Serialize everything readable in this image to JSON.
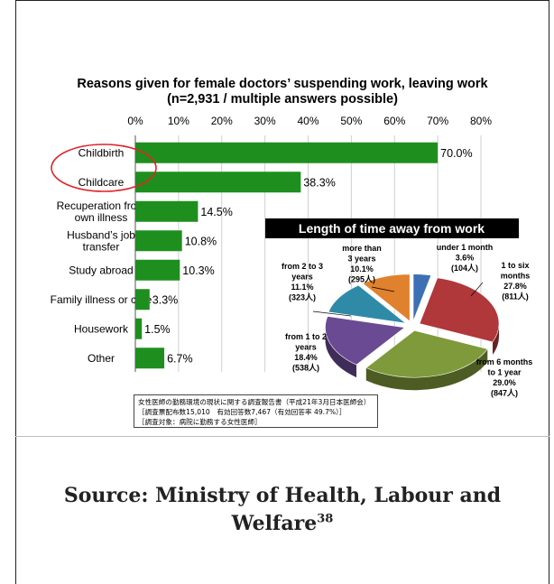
{
  "chart_data": [
    {
      "type": "bar",
      "orientation": "horizontal",
      "title": "Reasons given for female doctors’ suspending work, leaving work",
      "subtitle": "(n=2,931 / multiple answers possible)",
      "x_ticks": [
        "0%",
        "10%",
        "20%",
        "30%",
        "40%",
        "50%",
        "60%",
        "70%",
        "80%"
      ],
      "xlim": [
        0,
        80
      ],
      "categories": [
        "Childbirth",
        "Childcare",
        "Recuperation from own illness",
        "Husband’s job transfer",
        "Study abroad",
        "Family illness or care",
        "Housework",
        "Other"
      ],
      "category_lines": [
        [
          "Childbirth"
        ],
        [
          "Childcare"
        ],
        [
          "Recuperation from",
          "own illness"
        ],
        [
          "Husband’s job",
          "transfer"
        ],
        [
          "Study abroad"
        ],
        [
          "Family illness or care"
        ],
        [
          "Housework"
        ],
        [
          "Other"
        ]
      ],
      "values": [
        70.0,
        38.3,
        14.5,
        10.8,
        10.3,
        3.3,
        1.5,
        6.7
      ],
      "value_labels": [
        "70.0%",
        "38.3%",
        "14.5%",
        "10.8%",
        "10.3%",
        "3.3%",
        "1.5%",
        "6.7%"
      ],
      "bar_color": "#1e8f1e",
      "highlight_color": "#e0242b",
      "highlighted_categories": [
        "Childbirth",
        "Childcare"
      ]
    },
    {
      "type": "pie",
      "title": "Length of time away from work",
      "slices": [
        {
          "label_lines": [
            "under 1 month",
            "3.6%",
            "(104人)"
          ],
          "value": 3.6,
          "count": 104,
          "color": "#3d6fb5"
        },
        {
          "label_lines": [
            "1 to six",
            "months",
            "27.8%",
            "(811人)"
          ],
          "value": 27.8,
          "count": 811,
          "color": "#b0373a"
        },
        {
          "label_lines": [
            "from 6 months",
            "to 1 year",
            "29.0%",
            "(847人)"
          ],
          "value": 29.0,
          "count": 847,
          "color": "#7f9a3a"
        },
        {
          "label_lines": [
            "from 1 to 2",
            "years",
            "18.4%",
            "(538人)"
          ],
          "value": 18.4,
          "count": 538,
          "color": "#6a4a93"
        },
        {
          "label_lines": [
            "from 2 to 3",
            "years",
            "11.1%",
            "(323人)"
          ],
          "value": 11.1,
          "count": 323,
          "color": "#2f8aa8"
        },
        {
          "label_lines": [
            "more than",
            "3 years",
            "10.1%",
            "(295人)"
          ],
          "value": 10.1,
          "count": 295,
          "color": "#e0812e"
        }
      ]
    }
  ],
  "note_lines": [
    "女性医師の勤務環境の現状に関する調査報告書（平成21年3月日本医師会）",
    "［調査票配布数15,010　有効回答数7,467（有効回答率 49.7%）］",
    "［調査対象：病院に勤務する女性医師］"
  ],
  "source": {
    "text": "Source: Ministry of Health, Labour and Welfare",
    "ref": "38"
  }
}
